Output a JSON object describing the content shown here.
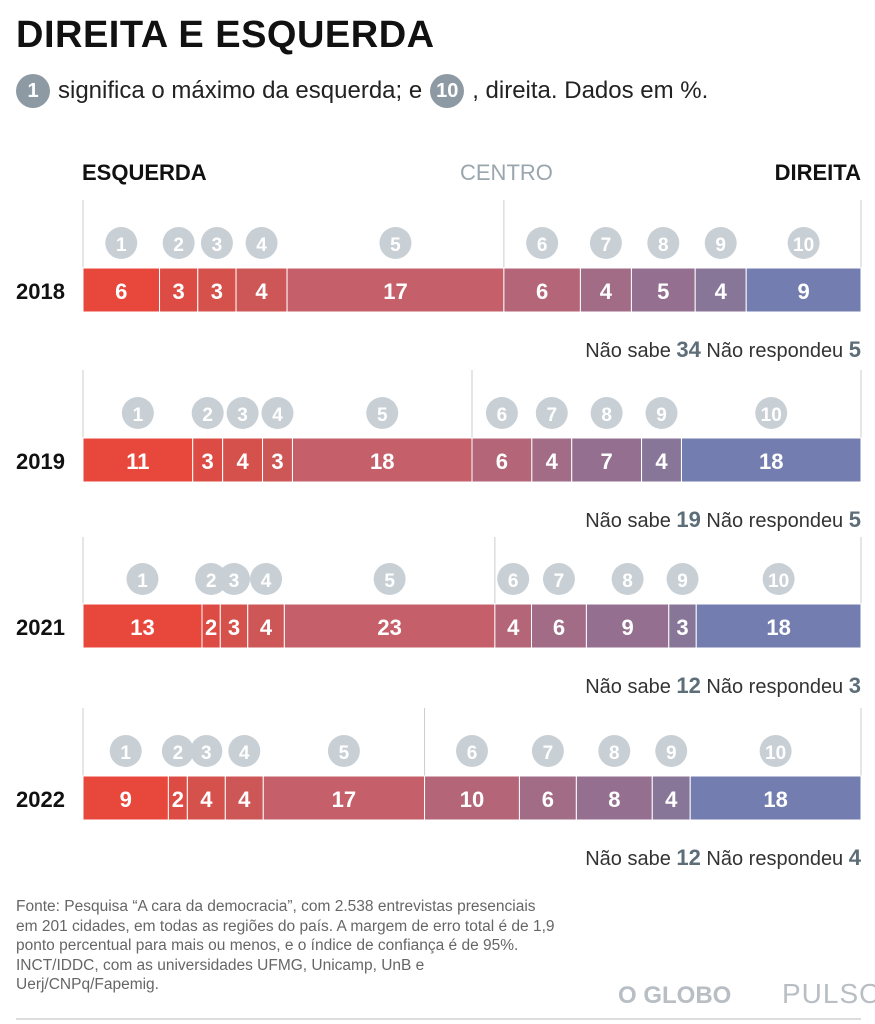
{
  "title": "DIREITA E ESQUERDA",
  "subtitle": {
    "badge1": "1",
    "part1": "significa o máximo da esquerda; e",
    "badge2": "10",
    "part2": ", direita. Dados em %."
  },
  "chart_data": {
    "type": "bar",
    "orientation": "horizontal-stacked",
    "scale_labels": {
      "left": "ESQUERDA",
      "center": "CENTRO",
      "right": "DIREITA"
    },
    "categories": [
      "1",
      "2",
      "3",
      "4",
      "5",
      "6",
      "7",
      "8",
      "9",
      "10"
    ],
    "rows": [
      {
        "year": "2018",
        "values": [
          6,
          3,
          3,
          4,
          17,
          6,
          4,
          5,
          4,
          9
        ],
        "nao_sabe": 34,
        "nao_respondeu": 5
      },
      {
        "year": "2019",
        "values": [
          11,
          3,
          4,
          3,
          18,
          6,
          4,
          7,
          4,
          18
        ],
        "nao_sabe": 19,
        "nao_respondeu": 5
      },
      {
        "year": "2021",
        "values": [
          13,
          2,
          3,
          4,
          23,
          4,
          6,
          9,
          3,
          18
        ],
        "nao_sabe": 12,
        "nao_respondeu": 3
      },
      {
        "year": "2022",
        "values": [
          9,
          2,
          4,
          4,
          17,
          10,
          6,
          8,
          4,
          18
        ],
        "nao_sabe": 12,
        "nao_respondeu": 4
      }
    ],
    "nao_sabe_label": "Não sabe",
    "nao_respondeu_label": "Não respondeu",
    "colors": [
      "#e8473c",
      "#dd4c44",
      "#d5514c",
      "#cd5656",
      "#c55f69",
      "#b46578",
      "#a26b86",
      "#946f90",
      "#887699",
      "#737daf"
    ]
  },
  "footer": "Fonte: Pesquisa “A cara da democracia”, com 2.538 entrevistas presenciais em 201 cidades, em todas as regiões do país. A margem de erro total é de 1,9 ponto percentual para mais ou menos, e o índice de confiança é de 95%. INCT/IDDC, com as universidades UFMG, Unicamp, UnB e Uerj/CNPq/Fapemig.",
  "logos": {
    "globo": "O GLOBO",
    "pulso": "PULSO"
  }
}
